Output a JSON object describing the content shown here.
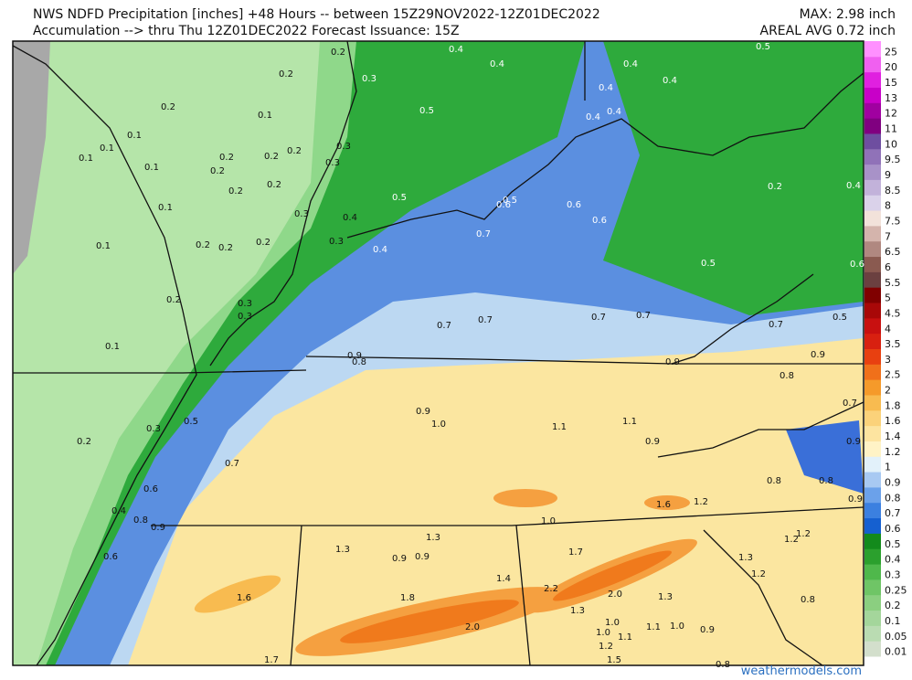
{
  "header": {
    "line1": "NWS NDFD Precipitation [inches] +48 Hours -- between 15Z29NOV2022-12Z01DEC2022",
    "line2": "Accumulation --> thru Thu 12Z01DEC2022   Forecast Issuance: 15Z",
    "max": "MAX: 2.98 inch",
    "areal_avg": "AREAL AVG 0.72 inch"
  },
  "colorbar": [
    {
      "label": "0.01",
      "color": "#d3dfcc"
    },
    {
      "label": "0.05",
      "color": "#badcb2"
    },
    {
      "label": "0.1",
      "color": "#a4d69b"
    },
    {
      "label": "0.2",
      "color": "#8bcf80"
    },
    {
      "label": "0.25",
      "color": "#6fc566"
    },
    {
      "label": "0.3",
      "color": "#4fb84b"
    },
    {
      "label": "0.4",
      "color": "#2ba02d"
    },
    {
      "label": "0.5",
      "color": "#138a1c"
    },
    {
      "label": "0.6",
      "color": "#1560d0"
    },
    {
      "label": "0.7",
      "color": "#3b80e0"
    },
    {
      "label": "0.8",
      "color": "#6ba1ea"
    },
    {
      "label": "0.9",
      "color": "#a8c9f2"
    },
    {
      "label": "1",
      "color": "#e2f1fa"
    },
    {
      "label": "1.2",
      "color": "#fff3c6"
    },
    {
      "label": "1.4",
      "color": "#fde4a0"
    },
    {
      "label": "1.6",
      "color": "#fbd27a"
    },
    {
      "label": "1.8",
      "color": "#f8bb50"
    },
    {
      "label": "2",
      "color": "#f59a2a"
    },
    {
      "label": "2.5",
      "color": "#f0701a"
    },
    {
      "label": "3",
      "color": "#e84010"
    },
    {
      "label": "3.5",
      "color": "#d82010"
    },
    {
      "label": "4",
      "color": "#c81010"
    },
    {
      "label": "4.5",
      "color": "#a80808"
    },
    {
      "label": "5",
      "color": "#800000"
    },
    {
      "label": "5.5",
      "color": "#6b4040"
    },
    {
      "label": "6",
      "color": "#8a5a50"
    },
    {
      "label": "6.5",
      "color": "#b08880"
    },
    {
      "label": "7",
      "color": "#d4b4ac"
    },
    {
      "label": "7.5",
      "color": "#f2e2da"
    },
    {
      "label": "8",
      "color": "#dad2ea"
    },
    {
      "label": "8.5",
      "color": "#c2b2da"
    },
    {
      "label": "9",
      "color": "#a892c8"
    },
    {
      "label": "9.5",
      "color": "#9072b8"
    },
    {
      "label": "10",
      "color": "#6e4ea0"
    },
    {
      "label": "11",
      "color": "#800080"
    },
    {
      "label": "12",
      "color": "#a000a0"
    },
    {
      "label": "13",
      "color": "#c800c8"
    },
    {
      "label": "15",
      "color": "#e020e0"
    },
    {
      "label": "20",
      "color": "#f060f0"
    },
    {
      "label": "25",
      "color": "#ff90ff"
    }
  ],
  "map_labels": [
    "0.2",
    "0.3",
    "0.4",
    "0.4",
    "0.4",
    "0.4",
    "0.4",
    "0.5",
    "0.2",
    "0.2",
    "0.1",
    "0.5",
    "0.4",
    "0.4",
    "0.1",
    "0.1",
    "0.1",
    "0.1",
    "0.2",
    "0.2",
    "0.2",
    "0.3",
    "0.3",
    "0.2",
    "0.2",
    "0.2",
    "0.1",
    "0.5",
    "0.6",
    "0.5",
    "0.6",
    "0.6",
    "0.2",
    "0.4",
    "0.3",
    "0.4",
    "0.3",
    "0.1",
    "0.2",
    "0.2",
    "0.2",
    "0.7",
    "0.4",
    "0.5",
    "0.6",
    "0.2",
    "0.3",
    "0.3",
    "0.7",
    "0.7",
    "0.7",
    "0.7",
    "0.5",
    "0.7",
    "0.1",
    "0.9",
    "0.8",
    "0.9",
    "0.9",
    "0.8",
    "0.7",
    "0.9",
    "1.0",
    "1.1",
    "1.1",
    "0.9",
    "0.9",
    "0.5",
    "0.3",
    "0.2",
    "0.7",
    "0.6",
    "0.8",
    "0.8",
    "0.9",
    "1.6",
    "1.2",
    "0.4",
    "0.8",
    "0.9",
    "1.0",
    "1.3",
    "1.3",
    "0.9",
    "0.9",
    "1.7",
    "1.2",
    "1.2",
    "1.3",
    "1.2",
    "0.6",
    "1.4",
    "2.2",
    "2.0",
    "1.3",
    "1.6",
    "1.8",
    "0.8",
    "1.3",
    "1.0",
    "1.0",
    "1.1",
    "1.1",
    "1.0",
    "0.9",
    "2.0",
    "1.2",
    "1.5",
    "1.7",
    "0.8"
  ],
  "watermark": "weathermodels.com"
}
